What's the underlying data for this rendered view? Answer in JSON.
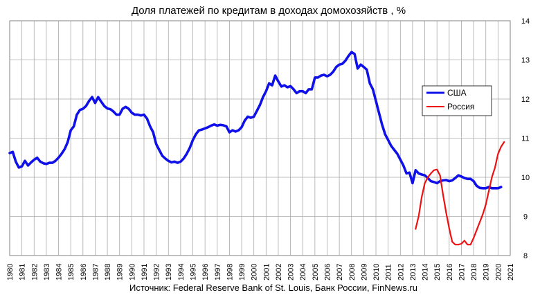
{
  "chart_data": {
    "type": "line",
    "title": "Доля платежей по кредитам в доходах домохозяйств , %",
    "source": "Источник: Federal Reserve Bank of St. Louis, Банк России, FinNews.ru",
    "xlabel": "",
    "ylabel": "",
    "xlim": [
      1980,
      2021
    ],
    "ylim": [
      8,
      14
    ],
    "x_ticks": [
      "1980",
      "1981",
      "1982",
      "1983",
      "1984",
      "1985",
      "1986",
      "1987",
      "1988",
      "1989",
      "1990",
      "1991",
      "1992",
      "1993",
      "1994",
      "1995",
      "1996",
      "1997",
      "1998",
      "1999",
      "2000",
      "2001",
      "2002",
      "2003",
      "2004",
      "2005",
      "2006",
      "2007",
      "2008",
      "2009",
      "2010",
      "2011",
      "2012",
      "2013",
      "2014",
      "2015",
      "2016",
      "2017",
      "2018",
      "2019",
      "2020",
      "2021"
    ],
    "y_ticks": [
      "8",
      "9",
      "10",
      "11",
      "12",
      "13",
      "14"
    ],
    "grid": true,
    "y_axis_side": "right",
    "legend_position": "right",
    "series": [
      {
        "name": "США",
        "color": "#1010e8",
        "points": [
          [
            1980.0,
            10.62
          ],
          [
            1980.25,
            10.65
          ],
          [
            1980.5,
            10.4
          ],
          [
            1980.75,
            10.25
          ],
          [
            1981.0,
            10.28
          ],
          [
            1981.25,
            10.42
          ],
          [
            1981.5,
            10.3
          ],
          [
            1981.75,
            10.38
          ],
          [
            1982.0,
            10.45
          ],
          [
            1982.25,
            10.5
          ],
          [
            1982.5,
            10.4
          ],
          [
            1982.75,
            10.36
          ],
          [
            1983.0,
            10.34
          ],
          [
            1983.25,
            10.37
          ],
          [
            1983.5,
            10.37
          ],
          [
            1983.75,
            10.42
          ],
          [
            1984.0,
            10.5
          ],
          [
            1984.25,
            10.6
          ],
          [
            1984.5,
            10.72
          ],
          [
            1984.75,
            10.9
          ],
          [
            1985.0,
            11.2
          ],
          [
            1985.25,
            11.3
          ],
          [
            1985.5,
            11.6
          ],
          [
            1985.75,
            11.72
          ],
          [
            1986.0,
            11.75
          ],
          [
            1986.25,
            11.82
          ],
          [
            1986.5,
            11.95
          ],
          [
            1986.75,
            12.05
          ],
          [
            1987.0,
            11.9
          ],
          [
            1987.25,
            12.05
          ],
          [
            1987.5,
            11.93
          ],
          [
            1987.75,
            11.82
          ],
          [
            1988.0,
            11.76
          ],
          [
            1988.25,
            11.74
          ],
          [
            1988.5,
            11.68
          ],
          [
            1988.75,
            11.6
          ],
          [
            1989.0,
            11.6
          ],
          [
            1989.25,
            11.75
          ],
          [
            1989.5,
            11.8
          ],
          [
            1989.75,
            11.75
          ],
          [
            1990.0,
            11.65
          ],
          [
            1990.25,
            11.6
          ],
          [
            1990.5,
            11.6
          ],
          [
            1990.75,
            11.58
          ],
          [
            1991.0,
            11.6
          ],
          [
            1991.25,
            11.5
          ],
          [
            1991.5,
            11.3
          ],
          [
            1991.75,
            11.15
          ],
          [
            1992.0,
            10.85
          ],
          [
            1992.25,
            10.7
          ],
          [
            1992.5,
            10.55
          ],
          [
            1992.75,
            10.48
          ],
          [
            1993.0,
            10.42
          ],
          [
            1993.25,
            10.38
          ],
          [
            1993.5,
            10.4
          ],
          [
            1993.75,
            10.37
          ],
          [
            1994.0,
            10.4
          ],
          [
            1994.25,
            10.48
          ],
          [
            1994.5,
            10.6
          ],
          [
            1994.75,
            10.75
          ],
          [
            1995.0,
            10.95
          ],
          [
            1995.25,
            11.1
          ],
          [
            1995.5,
            11.2
          ],
          [
            1995.75,
            11.22
          ],
          [
            1996.0,
            11.25
          ],
          [
            1996.25,
            11.28
          ],
          [
            1996.5,
            11.32
          ],
          [
            1996.75,
            11.35
          ],
          [
            1997.0,
            11.32
          ],
          [
            1997.25,
            11.34
          ],
          [
            1997.5,
            11.33
          ],
          [
            1997.75,
            11.3
          ],
          [
            1998.0,
            11.15
          ],
          [
            1998.25,
            11.2
          ],
          [
            1998.5,
            11.17
          ],
          [
            1998.75,
            11.2
          ],
          [
            1999.0,
            11.28
          ],
          [
            1999.25,
            11.45
          ],
          [
            1999.5,
            11.55
          ],
          [
            1999.75,
            11.52
          ],
          [
            2000.0,
            11.55
          ],
          [
            2000.25,
            11.7
          ],
          [
            2000.5,
            11.85
          ],
          [
            2000.75,
            12.05
          ],
          [
            2001.0,
            12.2
          ],
          [
            2001.25,
            12.4
          ],
          [
            2001.5,
            12.35
          ],
          [
            2001.75,
            12.6
          ],
          [
            2002.0,
            12.45
          ],
          [
            2002.25,
            12.32
          ],
          [
            2002.5,
            12.35
          ],
          [
            2002.75,
            12.3
          ],
          [
            2003.0,
            12.33
          ],
          [
            2003.25,
            12.25
          ],
          [
            2003.5,
            12.15
          ],
          [
            2003.75,
            12.2
          ],
          [
            2004.0,
            12.2
          ],
          [
            2004.25,
            12.15
          ],
          [
            2004.5,
            12.25
          ],
          [
            2004.75,
            12.25
          ],
          [
            2005.0,
            12.55
          ],
          [
            2005.25,
            12.55
          ],
          [
            2005.5,
            12.6
          ],
          [
            2005.75,
            12.62
          ],
          [
            2006.0,
            12.58
          ],
          [
            2006.25,
            12.62
          ],
          [
            2006.5,
            12.7
          ],
          [
            2006.75,
            12.82
          ],
          [
            2007.0,
            12.88
          ],
          [
            2007.25,
            12.9
          ],
          [
            2007.5,
            12.98
          ],
          [
            2007.75,
            13.1
          ],
          [
            2008.0,
            13.2
          ],
          [
            2008.25,
            13.15
          ],
          [
            2008.5,
            12.78
          ],
          [
            2008.75,
            12.88
          ],
          [
            2009.0,
            12.82
          ],
          [
            2009.25,
            12.75
          ],
          [
            2009.5,
            12.4
          ],
          [
            2009.75,
            12.25
          ],
          [
            2010.0,
            11.95
          ],
          [
            2010.25,
            11.65
          ],
          [
            2010.5,
            11.35
          ],
          [
            2010.75,
            11.1
          ],
          [
            2011.0,
            10.95
          ],
          [
            2011.25,
            10.8
          ],
          [
            2011.5,
            10.7
          ],
          [
            2011.75,
            10.6
          ],
          [
            2012.0,
            10.45
          ],
          [
            2012.25,
            10.3
          ],
          [
            2012.5,
            10.1
          ],
          [
            2012.75,
            10.12
          ],
          [
            2013.0,
            9.85
          ],
          [
            2013.25,
            10.18
          ],
          [
            2013.5,
            10.1
          ],
          [
            2013.75,
            10.07
          ],
          [
            2014.0,
            10.05
          ],
          [
            2014.25,
            9.98
          ],
          [
            2014.5,
            9.9
          ],
          [
            2014.75,
            9.88
          ],
          [
            2015.0,
            9.85
          ],
          [
            2015.25,
            9.9
          ],
          [
            2015.5,
            9.92
          ],
          [
            2015.75,
            9.93
          ],
          [
            2016.0,
            9.9
          ],
          [
            2016.25,
            9.92
          ],
          [
            2016.5,
            9.98
          ],
          [
            2016.75,
            10.05
          ],
          [
            2017.0,
            10.02
          ],
          [
            2017.25,
            9.98
          ],
          [
            2017.5,
            9.96
          ],
          [
            2017.75,
            9.96
          ],
          [
            2018.0,
            9.9
          ],
          [
            2018.25,
            9.78
          ],
          [
            2018.5,
            9.73
          ],
          [
            2018.75,
            9.72
          ],
          [
            2019.0,
            9.72
          ],
          [
            2019.25,
            9.75
          ],
          [
            2019.5,
            9.72
          ],
          [
            2019.75,
            9.72
          ],
          [
            2020.0,
            9.72
          ],
          [
            2020.25,
            9.75
          ]
        ]
      },
      {
        "name": "Россия",
        "color": "#ee1111",
        "points": [
          [
            2013.25,
            8.68
          ],
          [
            2013.5,
            9.0
          ],
          [
            2013.75,
            9.5
          ],
          [
            2014.0,
            9.85
          ],
          [
            2014.25,
            10.0
          ],
          [
            2014.5,
            10.1
          ],
          [
            2014.75,
            10.18
          ],
          [
            2015.0,
            10.2
          ],
          [
            2015.25,
            10.05
          ],
          [
            2015.5,
            9.55
          ],
          [
            2015.75,
            9.1
          ],
          [
            2016.0,
            8.7
          ],
          [
            2016.25,
            8.35
          ],
          [
            2016.5,
            8.28
          ],
          [
            2016.75,
            8.28
          ],
          [
            2017.0,
            8.3
          ],
          [
            2017.25,
            8.38
          ],
          [
            2017.5,
            8.28
          ],
          [
            2017.75,
            8.28
          ],
          [
            2018.0,
            8.45
          ],
          [
            2018.25,
            8.65
          ],
          [
            2018.5,
            8.85
          ],
          [
            2018.75,
            9.05
          ],
          [
            2019.0,
            9.3
          ],
          [
            2019.25,
            9.65
          ],
          [
            2019.5,
            10.0
          ],
          [
            2019.75,
            10.25
          ],
          [
            2020.0,
            10.6
          ],
          [
            2020.25,
            10.78
          ],
          [
            2020.5,
            10.9
          ]
        ]
      }
    ]
  }
}
